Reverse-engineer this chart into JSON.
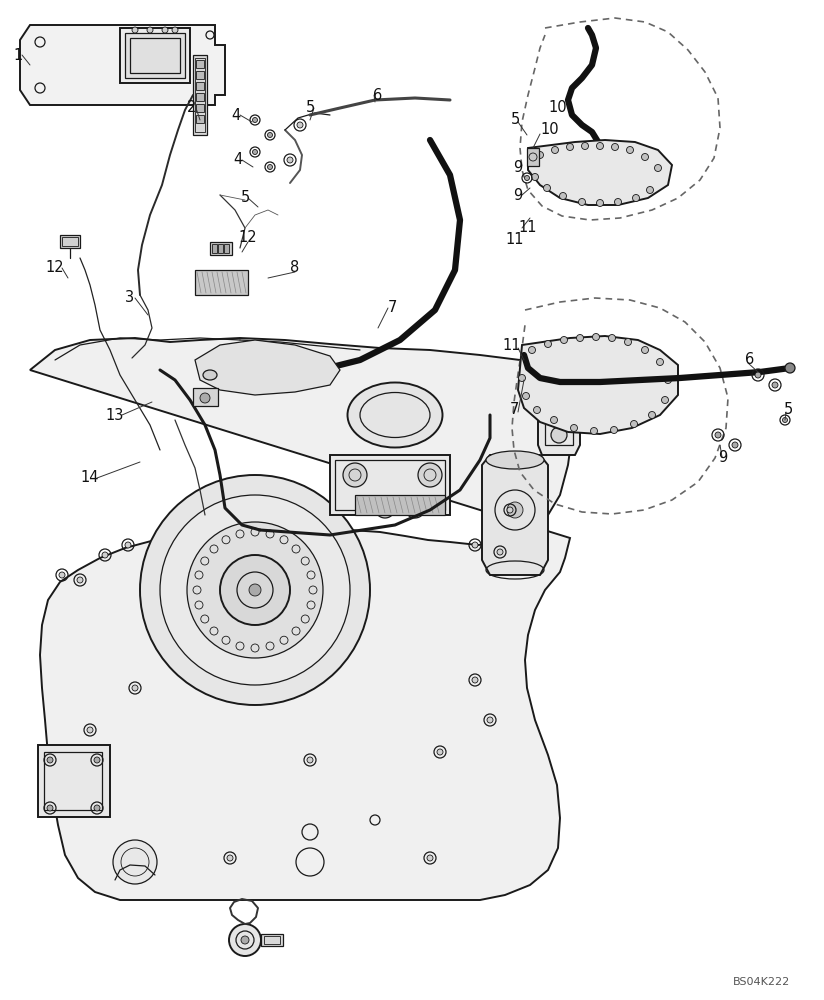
{
  "background_color": "#ffffff",
  "watermark": "BS04K222",
  "line_color": "#1a1a1a",
  "label_color": "#111111",
  "label_fontsize": 10.5
}
